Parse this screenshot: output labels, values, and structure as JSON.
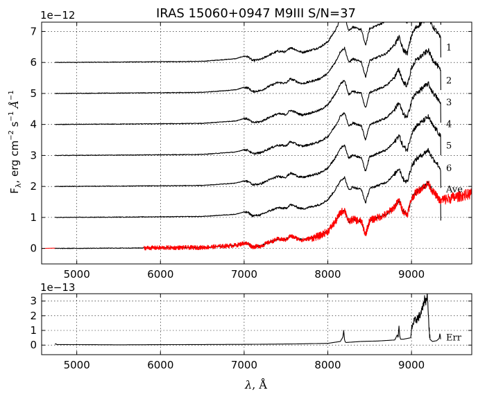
{
  "chart_data": [
    {
      "type": "line",
      "title": "IRAS 15060+0947  M9III  S/N=37",
      "ylabel_main": "F",
      "ylabel_sub": "λ",
      "ylabel_rest": ", erg cm",
      "ylabel_exp1": "−2",
      "ylabel_s": " s",
      "ylabel_exp2": "−1",
      "ylabel_A": " Å",
      "ylabel_exp3": "−1",
      "offset_text": "1e−12",
      "xlim": [
        4580,
        9720
      ],
      "ylim": [
        -0.5,
        7.3
      ],
      "xticks": [
        5000,
        6000,
        7000,
        8000,
        9000
      ],
      "xtick_labels": [
        "5000",
        "6000",
        "7000",
        "8000",
        "9000"
      ],
      "yticks": [
        0,
        1,
        2,
        3,
        4,
        5,
        6,
        7
      ],
      "ytick_labels": [
        "0",
        "1",
        "2",
        "3",
        "4",
        "5",
        "6",
        "7"
      ],
      "grid": true,
      "series": [
        {
          "name": "1",
          "offset": 6,
          "x_range": [
            4740,
            9350
          ],
          "color": "#000000"
        },
        {
          "name": "2",
          "offset": 5,
          "x_range": [
            4740,
            9350
          ],
          "color": "#000000"
        },
        {
          "name": "3",
          "offset": 4,
          "x_range": [
            4740,
            9350
          ],
          "color": "#000000"
        },
        {
          "name": "4",
          "offset": 3,
          "x_range": [
            4740,
            9350
          ],
          "color": "#000000"
        },
        {
          "name": "5",
          "offset": 2,
          "x_range": [
            4740,
            9350
          ],
          "color": "#000000"
        },
        {
          "name": "6",
          "offset": 1,
          "x_range": [
            4740,
            9350
          ],
          "color": "#000000"
        },
        {
          "name": "",
          "offset": 0,
          "x_range": [
            4740,
            9350
          ],
          "color": "#000000"
        },
        {
          "name": "Ave",
          "offset": 0,
          "x_range": [
            5800,
            9720
          ],
          "color": "#ff0000"
        }
      ],
      "template_flux": {
        "x": [
          4740,
          5500,
          6000,
          6500,
          6900,
          7000,
          7050,
          7100,
          7200,
          7300,
          7400,
          7500,
          7550,
          7600,
          7650,
          7700,
          7800,
          7900,
          8000,
          8100,
          8150,
          8200,
          8250,
          8300,
          8350,
          8400,
          8450,
          8500,
          8550,
          8600,
          8700,
          8800,
          8850,
          8900,
          8950,
          9000,
          9050,
          9100,
          9150,
          9200,
          9250,
          9300,
          9350
        ],
        "y": [
          0.0,
          0.01,
          0.02,
          0.03,
          0.1,
          0.17,
          0.15,
          0.05,
          0.08,
          0.2,
          0.3,
          0.28,
          0.4,
          0.36,
          0.3,
          0.27,
          0.33,
          0.4,
          0.55,
          0.9,
          1.15,
          1.25,
          0.85,
          0.95,
          0.9,
          0.88,
          0.45,
          0.9,
          0.95,
          1.0,
          1.1,
          1.35,
          1.55,
          1.2,
          1.1,
          1.6,
          1.8,
          1.9,
          2.0,
          2.1,
          1.85,
          1.7,
          1.5
        ]
      }
    },
    {
      "type": "line",
      "offset_text": "1e−13",
      "xlabel_main": "λ",
      "xlabel_rest": ", Å",
      "xlim": [
        4580,
        9720
      ],
      "ylim": [
        -0.65,
        3.5
      ],
      "xticks": [
        5000,
        6000,
        7000,
        8000,
        9000
      ],
      "xtick_labels": [
        "5000",
        "6000",
        "7000",
        "8000",
        "9000"
      ],
      "yticks": [
        0,
        1,
        2,
        3
      ],
      "ytick_labels": [
        "0",
        "1",
        "2",
        "3"
      ],
      "grid": true,
      "series": [
        {
          "name": "Err",
          "color": "#000000",
          "x": [
            4740,
            4750,
            4760,
            5500,
            7000,
            7600,
            8000,
            8150,
            8180,
            8190,
            8200,
            8210,
            8220,
            8400,
            8600,
            8800,
            8830,
            8840,
            8850,
            8860,
            8870,
            8900,
            8990,
            9000,
            9010,
            9050,
            9100,
            9120,
            9140,
            9150,
            9160,
            9170,
            9180,
            9190,
            9200,
            9210,
            9220,
            9250,
            9300,
            9330,
            9340,
            9350
          ],
          "y": [
            0.05,
            0.1,
            0.04,
            0.02,
            0.05,
            0.08,
            0.12,
            0.25,
            0.55,
            1.0,
            0.35,
            0.2,
            0.18,
            0.25,
            0.28,
            0.35,
            0.7,
            0.5,
            1.3,
            0.6,
            0.4,
            0.4,
            0.5,
            1.0,
            1.4,
            1.7,
            2.0,
            2.3,
            2.6,
            3.0,
            3.2,
            2.8,
            3.3,
            3.45,
            2.1,
            1.2,
            0.4,
            0.25,
            0.3,
            0.45,
            0.8,
            0.3
          ]
        }
      ]
    }
  ]
}
